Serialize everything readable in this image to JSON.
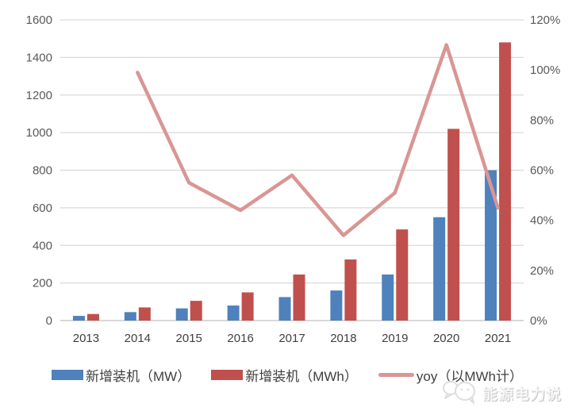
{
  "chart_data": {
    "type": "bar",
    "subtype": "bar+line combo, dual axis",
    "title": "",
    "categories": [
      "2013",
      "2014",
      "2015",
      "2016",
      "2017",
      "2018",
      "2019",
      "2020",
      "2021"
    ],
    "series": [
      {
        "name": "新增装机（MW）",
        "kind": "bar",
        "axis": "left",
        "color": "#4f81bd",
        "values": [
          25,
          45,
          65,
          80,
          125,
          160,
          245,
          550,
          800
        ]
      },
      {
        "name": "新增装机（MWh）",
        "kind": "bar",
        "axis": "left",
        "color": "#c0504d",
        "values": [
          35,
          70,
          105,
          150,
          245,
          325,
          485,
          1020,
          1480
        ]
      },
      {
        "name": "yoy（以MWh计）",
        "kind": "line",
        "axis": "right",
        "color": "#d99694",
        "values": [
          null,
          99,
          55,
          44,
          58,
          34,
          51,
          110,
          45
        ]
      }
    ],
    "left_axis": {
      "min": 0,
      "max": 1600,
      "step": 200,
      "tick_labels": [
        "0",
        "200",
        "400",
        "600",
        "800",
        "1000",
        "1200",
        "1400",
        "1600"
      ]
    },
    "right_axis": {
      "min": 0,
      "max": 120,
      "step": 20,
      "tick_labels": [
        "0%",
        "20%",
        "40%",
        "60%",
        "80%",
        "100%",
        "120%"
      ]
    },
    "grid": true,
    "legend_position": "bottom",
    "colors": {
      "grid": "#d9d9d9",
      "axis_tick_text": "#595959",
      "category_text": "#404040"
    }
  },
  "watermark": {
    "text": "能源电力说",
    "icon": "chat-bubbles-icon"
  }
}
